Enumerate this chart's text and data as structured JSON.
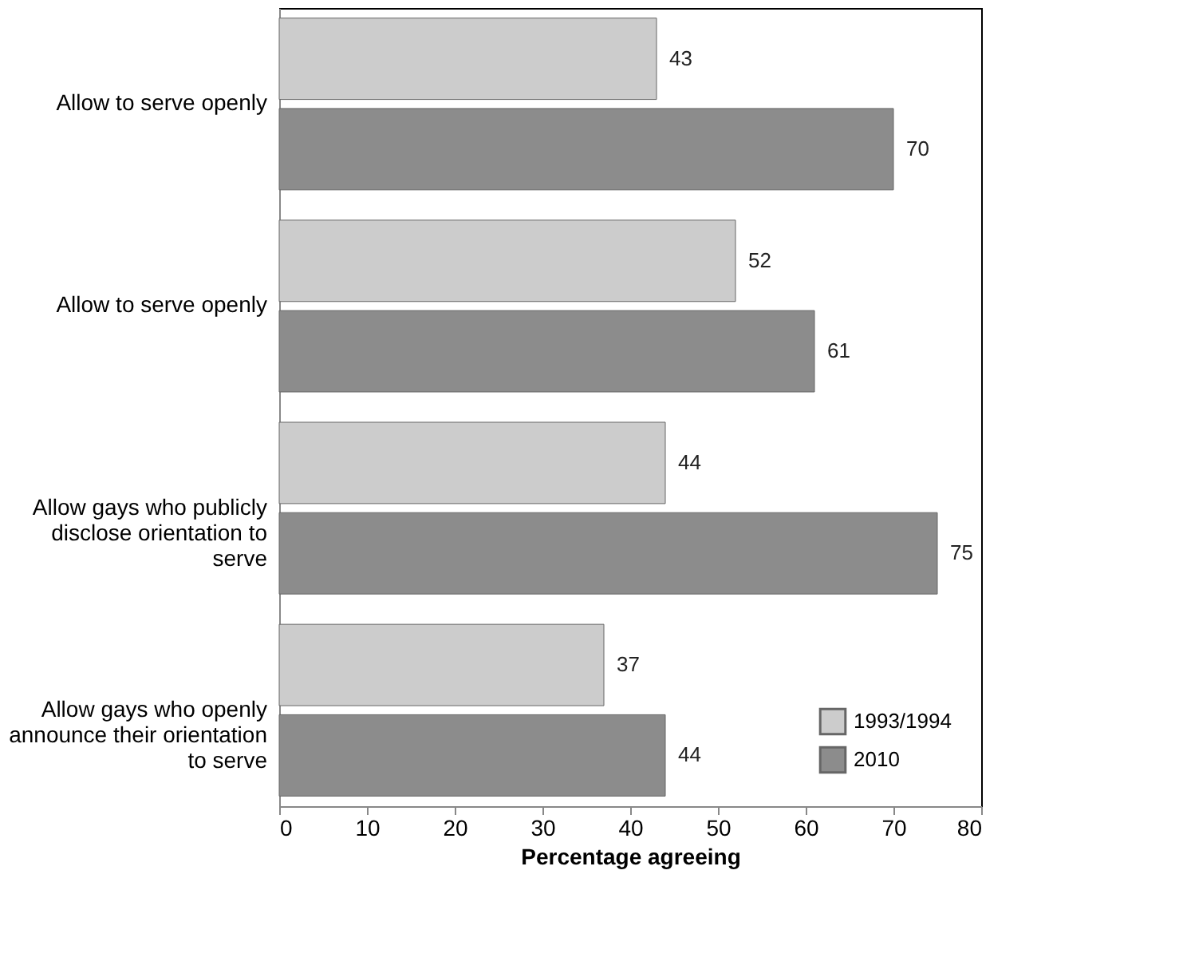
{
  "chart_data": {
    "type": "bar",
    "orientation": "horizontal",
    "categories": [
      "Allow to serve openly",
      "Allow to serve openly",
      "Allow gays who publicly disclose orientation to serve",
      "Allow gays who openly announce their orientation to serve"
    ],
    "series": [
      {
        "name": "1993/1994",
        "color": "#cccccc",
        "values": [
          43,
          52,
          44,
          37
        ]
      },
      {
        "name": "2010",
        "color": "#8c8c8c",
        "values": [
          70,
          61,
          75,
          44
        ]
      }
    ],
    "xlabel": "Percentage agreeing",
    "xlim": [
      0,
      80
    ],
    "xticks": [
      0,
      10,
      20,
      30,
      40,
      50,
      60,
      70,
      80
    ],
    "data_labels": true,
    "grid": false,
    "legend": "bottom right"
  }
}
